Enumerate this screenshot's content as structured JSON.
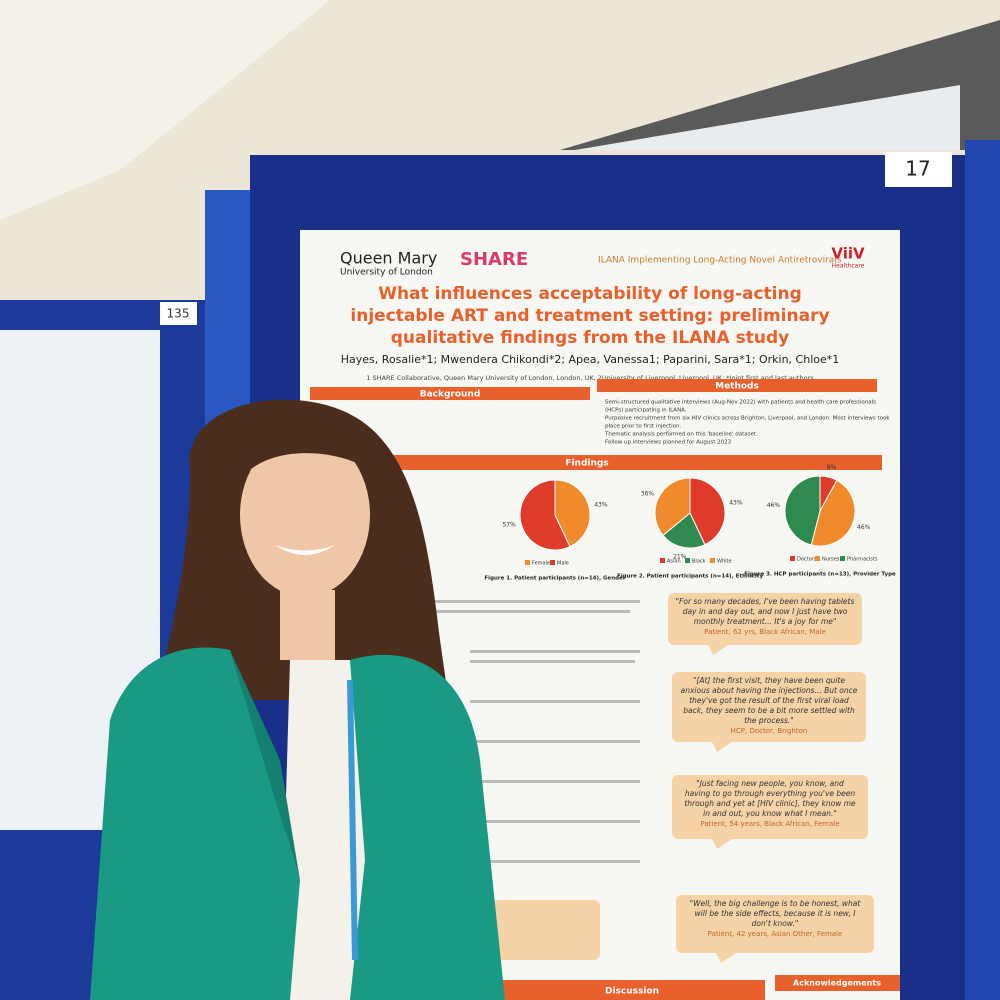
{
  "board": {
    "number": "17",
    "side_number": "135"
  },
  "poster": {
    "logos": {
      "qm": "Queen Mary",
      "qm_sub": "University of London",
      "share": "SHARE",
      "ilana": "ILANA Implementing Long-Acting Novel Antiretrovirals",
      "viiv": "ViiV",
      "viiv_sub": "Healthcare"
    },
    "title": [
      "What influences acceptability of long-acting",
      "injectable ART and treatment setting: preliminary",
      "qualitative findings from the ILANA study"
    ],
    "authors": "Hayes, Rosalie*1; Mwendera Chikondi*2; Apea, Vanessa1; Paparini, Sara*1; Orkin, Chloe*1",
    "affiliation": "1 SHARE Collaborative, Queen Mary University of London, London, UK, 2University of Liverpool, Liverpool, UK; *Joint first and last authors",
    "sections": {
      "background": "Background",
      "methods": "Methods",
      "findings": "Findings",
      "discussion": "Discussion",
      "acknowledgements": "Acknowledgements"
    },
    "methods": [
      "Semi-structured qualitative interviews (Aug-Nov 2022) with patients and health care professionals",
      "(HCPs) participating in ILANA.",
      "Purposive recruitment from six HIV clinics across Brighton, Liverpool, and London. Most interviews took",
      "place prior to first injection.",
      "Thematic analysis performed on this 'baseline' dataset.",
      "Follow up interviews planned for August 2023"
    ],
    "figures": [
      {
        "caption": "Figure 1. Patient participants (n=14), Gender",
        "labels": [
          "Female",
          "Male"
        ],
        "values": [
          43,
          57
        ],
        "value_labels": [
          "43%",
          "57%"
        ],
        "colors": [
          "#f08a2c",
          "#e03a2a"
        ]
      },
      {
        "caption": "Figure 2. Patient participants (n=14), Ethnicity",
        "labels": [
          "Asian",
          "Black",
          "White"
        ],
        "values": [
          43,
          21,
          36
        ],
        "value_labels": [
          "43%",
          "21%",
          "36%"
        ],
        "colors": [
          "#e03a2a",
          "#2e8a4e",
          "#f08a2c"
        ]
      },
      {
        "caption": "Figure 3. HCP participants (n=13), Provider Type",
        "labels": [
          "Doctors",
          "Nurses",
          "Pharmacists"
        ],
        "values": [
          8,
          46,
          46
        ],
        "value_labels": [
          "8%",
          "46%",
          "46%"
        ],
        "colors": [
          "#e03a2a",
          "#f08a2c",
          "#2e8a4e"
        ]
      }
    ],
    "quotes": [
      {
        "text": [
          "\"For so many decades, I've been having tablets",
          "day in and day out, and now I just have two",
          "monthly treatment... It's a joy for me\""
        ],
        "source": "Patient, 62 yrs, Black African, Male"
      },
      {
        "text": [
          "\"[At] the first visit, they have been quite",
          "anxious about having the injections... But once",
          "they've got the result of the first viral load",
          "back, they seem to be a bit more settled with",
          "the process.\""
        ],
        "source": "HCP, Doctor, Brighton"
      },
      {
        "text": [
          "\"Just facing new people, you know, and",
          "having to go through everything you've been",
          "through and yet at [HIV clinic], they know me",
          "in and out, you know what I mean.\""
        ],
        "source": "Patient, 54 years, Black African, Female"
      },
      {
        "text": [
          "\"Well, the big challenge is to be honest, what",
          "will be the side effects, because it is new, I",
          "don't know.\""
        ],
        "source": "Patient, 42 years, Asian Other, Female"
      }
    ]
  }
}
